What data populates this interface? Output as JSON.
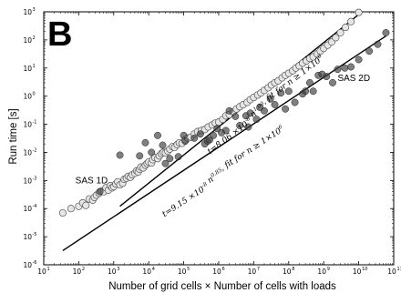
{
  "panel_label": "B",
  "chart_data": {
    "type": "scatter",
    "xlabel": "Number of grid cells × Number of cells with loads",
    "ylabel": "Run time [s]",
    "x_scale": "log",
    "y_scale": "log",
    "xlim": [
      10,
      100000000000
    ],
    "ylim": [
      1e-06,
      1000
    ],
    "x_tick_base": "10",
    "x_tick_exponents": [
      "1",
      "2",
      "3",
      "4",
      "5",
      "6",
      "7",
      "8",
      "9",
      "10",
      "11"
    ],
    "y_tick_base": "10",
    "y_tick_exponents": [
      "-6",
      "-5",
      "-4",
      "-3",
      "-2",
      "-1",
      "0",
      "1",
      "2",
      "3"
    ],
    "grid": false,
    "colors": {
      "open_marker": "#e6e6e6",
      "filled_marker": "#3a3a3a",
      "line": "#000000"
    },
    "annotations": [
      {
        "text": "SAS 1D",
        "x": 80,
        "y": 0.0008
      },
      {
        "text": "SAS 2D",
        "x": 2500000000,
        "y": 3.5
      }
    ],
    "fit_labels": [
      {
        "text": "t=8.06 ×10^{-8} n^{1.00}, fit for n ≥ 1×10^6",
        "x": 560000,
        "y": 0.0085,
        "angle": -37
      },
      {
        "text": "t=9.15 ×10^{-8} n^{0.85}, fit for n ≥ 1×10^6",
        "x": 28000,
        "y": 5e-05,
        "angle": -33
      }
    ],
    "series": [
      {
        "name": "SAS 1D",
        "marker": "open",
        "x": [
          35,
          60,
          100,
          130,
          160,
          200,
          250,
          280,
          320,
          380,
          450,
          520,
          600,
          700,
          800,
          900,
          1000,
          1150,
          1300,
          1500,
          1800,
          2000,
          2300,
          2600,
          3000,
          3400,
          4000,
          4500,
          5000,
          5500,
          6000,
          7000,
          8000,
          9000,
          10000,
          12000,
          13000,
          15000,
          18000,
          20000,
          23000,
          26000,
          30000,
          35000,
          40000,
          48000,
          55000,
          65000,
          75000,
          90000,
          110000,
          130000,
          160000,
          200000,
          250000,
          320000,
          400000,
          500000,
          650000,
          800000,
          1000000,
          1300000,
          1600000,
          2000000,
          2600000,
          3200000,
          4000000,
          5000000,
          6500000,
          8000000,
          10000000,
          13000000,
          16000000,
          20000000,
          26000000,
          32000000,
          40000000,
          50000000,
          65000000,
          80000000,
          100000000,
          130000000,
          160000000,
          200000000,
          250000000,
          320000000,
          400000000,
          500000000,
          650000000,
          800000000,
          1000000000,
          1300000000,
          1700000000,
          2200000000,
          3000000000,
          4200000000,
          6000000000,
          10000000000
        ],
        "y": [
          7e-05,
          0.0001,
          0.00012,
          0.00016,
          0.00013,
          0.00022,
          0.0002,
          0.00025,
          0.0003,
          0.00035,
          0.00042,
          0.0004,
          0.00055,
          0.00045,
          0.00065,
          0.00055,
          0.0006,
          0.00075,
          0.0009,
          0.0007,
          0.0008,
          0.0011,
          0.0012,
          0.0014,
          0.0013,
          0.0016,
          0.0018,
          0.0022,
          0.002,
          0.0025,
          0.003,
          0.0028,
          0.0035,
          0.004,
          0.0045,
          0.0042,
          0.0055,
          0.0065,
          0.006,
          0.0075,
          0.009,
          0.01,
          0.0095,
          0.011,
          0.013,
          0.016,
          0.015,
          0.019,
          0.022,
          0.021,
          0.028,
          0.032,
          0.035,
          0.045,
          0.055,
          0.06,
          0.065,
          0.08,
          0.095,
          0.11,
          0.12,
          0.15,
          0.2,
          0.22,
          0.28,
          0.35,
          0.42,
          0.5,
          0.6,
          0.75,
          0.9,
          1.1,
          1.3,
          1.6,
          2.0,
          2.5,
          3.0,
          3.5,
          4.5,
          5.5,
          6.5,
          8.0,
          10,
          12,
          15,
          18,
          22,
          25,
          32,
          40,
          50,
          65,
          85,
          120,
          180,
          280,
          450,
          950
        ]
      },
      {
        "name": "SAS 2D",
        "marker": "filled",
        "x": [
          400,
          1500,
          5500,
          8000,
          12000,
          18000,
          25000,
          30000,
          40000,
          70000,
          100000,
          110000,
          200000,
          300000,
          400000,
          480000,
          550000,
          700000,
          900000,
          1200000,
          1600000,
          2000000,
          3000000,
          4000000,
          6000000,
          7000000,
          8000000,
          12000000,
          15000000,
          20000000,
          30000000,
          40000000,
          60000000,
          80000000,
          100000000,
          150000000,
          250000000,
          300000000,
          400000000,
          500000000,
          700000000,
          900000000,
          1200000000,
          1800000000,
          2500000000,
          4000000000,
          6000000000,
          10000000000,
          20000000000,
          35000000000,
          60000000000
        ],
        "y": [
          0.0004,
          0.008,
          0.0075,
          0.022,
          0.01,
          0.04,
          0.018,
          0.004,
          0.006,
          0.007,
          0.04,
          0.025,
          0.032,
          0.045,
          0.02,
          0.025,
          0.028,
          0.04,
          0.07,
          0.05,
          0.06,
          0.3,
          0.19,
          0.09,
          0.2,
          0.08,
          0.25,
          0.15,
          0.4,
          0.3,
          0.8,
          0.5,
          1.3,
          0.35,
          1.5,
          0.6,
          1.2,
          1.5,
          3.0,
          1.5,
          5.5,
          6.0,
          5.0,
          3.0,
          9.0,
          10.0,
          11.0,
          20,
          40,
          70,
          180
        ]
      }
    ],
    "fit_lines": [
      {
        "x": [
          1500,
          10000000000
        ],
        "y": [
          0.000121,
          806
        ]
      },
      {
        "x": [
          35,
          60000000000
        ],
        "y": [
          3.2e-06,
          138
        ]
      }
    ]
  }
}
